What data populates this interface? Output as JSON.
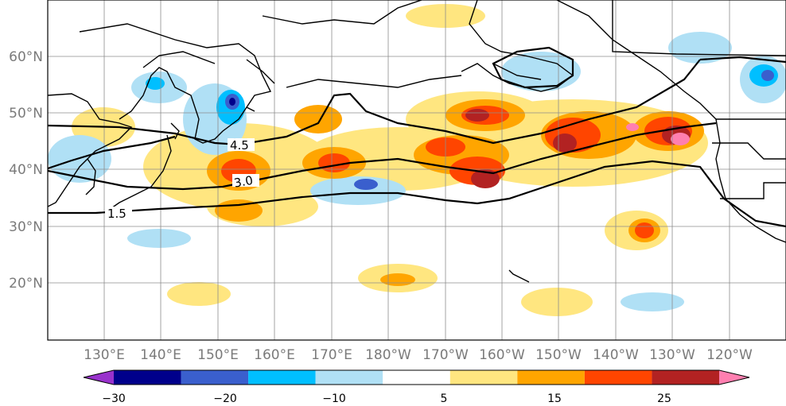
{
  "map": {
    "lat_labels": [
      "60°N",
      "50°N",
      "40°N",
      "30°N",
      "20°N"
    ],
    "lon_labels": [
      "130°E",
      "140°E",
      "150°E",
      "160°E",
      "170°E",
      "180°W",
      "170°W",
      "160°W",
      "150°W",
      "140°W",
      "130°W",
      "120°W"
    ],
    "contour_labels": [
      "4.5",
      "3.0",
      "1.5"
    ],
    "colors": {
      "land_line": "#000000",
      "grid": "#8c8c8c",
      "contour": "#000000"
    }
  },
  "colorbar": {
    "tick_labels": [
      "−30",
      "−20",
      "−10",
      "5",
      "15",
      "25"
    ],
    "bins": [
      "#9932cc",
      "#00008b",
      "#3a5fcd",
      "#00bfff",
      "#b0e0f5",
      "#ffffff",
      "#ffe680",
      "#ffa500",
      "#ff4500",
      "#b22222",
      "#ff7fb0"
    ],
    "extend": "both"
  }
}
